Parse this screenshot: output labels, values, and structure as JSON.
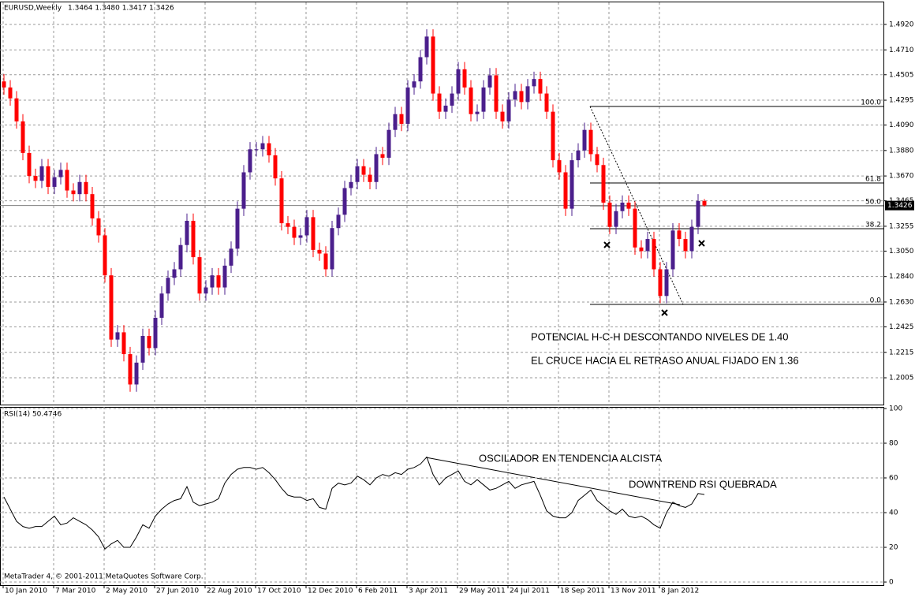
{
  "chart_data": [
    {
      "type": "candlestick",
      "title": "EURUSD,Weekly",
      "ohlc_text": "1.3464 1.3480 1.3417 1.3426",
      "up_color": "#4b1f8c",
      "down_color": "#ff0000",
      "grid": true,
      "open": [
        1.445,
        1.44,
        1.431,
        1.412,
        1.386,
        1.367,
        1.363,
        1.375,
        1.358,
        1.366,
        1.372,
        1.355,
        1.352,
        1.362,
        1.352,
        1.332,
        1.318,
        1.285,
        1.232,
        1.238,
        1.22,
        1.195,
        1.213,
        1.235,
        1.225,
        1.25,
        1.27,
        1.283,
        1.29,
        1.31,
        1.33,
        1.3,
        1.27,
        1.275,
        1.285,
        1.275,
        1.293,
        1.307,
        1.34,
        1.37,
        1.389,
        1.389,
        1.394,
        1.384,
        1.365,
        1.328,
        1.325,
        1.316,
        1.318,
        1.333,
        1.306,
        1.303,
        1.29,
        1.324,
        1.335,
        1.357,
        1.362,
        1.375,
        1.368,
        1.362,
        1.385,
        1.382,
        1.405,
        1.418,
        1.41,
        1.44,
        1.445,
        1.465,
        1.482,
        1.435,
        1.42,
        1.425,
        1.435,
        1.455,
        1.44,
        1.418,
        1.42,
        1.44,
        1.45,
        1.42,
        1.412,
        1.43,
        1.437,
        1.428,
        1.441,
        1.447,
        1.435,
        1.42,
        1.38,
        1.37,
        1.34,
        1.38,
        1.388,
        1.405,
        1.385,
        1.376,
        1.345,
        1.325,
        1.338,
        1.345,
        1.34,
        1.308,
        1.305,
        1.315,
        1.29,
        1.268,
        1.29,
        1.322,
        1.315,
        1.305,
        1.325,
        1.3464
      ],
      "high": [
        1.451,
        1.446,
        1.437,
        1.418,
        1.392,
        1.373,
        1.381,
        1.381,
        1.372,
        1.378,
        1.378,
        1.361,
        1.368,
        1.368,
        1.358,
        1.338,
        1.324,
        1.291,
        1.244,
        1.244,
        1.226,
        1.219,
        1.241,
        1.241,
        1.256,
        1.276,
        1.289,
        1.296,
        1.316,
        1.336,
        1.336,
        1.306,
        1.281,
        1.291,
        1.291,
        1.299,
        1.313,
        1.346,
        1.376,
        1.395,
        1.395,
        1.4,
        1.4,
        1.39,
        1.371,
        1.334,
        1.331,
        1.324,
        1.339,
        1.339,
        1.312,
        1.309,
        1.33,
        1.341,
        1.363,
        1.368,
        1.381,
        1.381,
        1.374,
        1.391,
        1.391,
        1.411,
        1.424,
        1.424,
        1.446,
        1.451,
        1.471,
        1.488,
        1.488,
        1.441,
        1.431,
        1.441,
        1.461,
        1.461,
        1.446,
        1.426,
        1.446,
        1.456,
        1.456,
        1.426,
        1.436,
        1.443,
        1.443,
        1.447,
        1.453,
        1.453,
        1.441,
        1.426,
        1.386,
        1.376,
        1.386,
        1.394,
        1.411,
        1.411,
        1.391,
        1.382,
        1.351,
        1.344,
        1.351,
        1.351,
        1.346,
        1.314,
        1.321,
        1.321,
        1.296,
        1.296,
        1.328,
        1.328,
        1.321,
        1.331,
        1.352,
        1.348
      ],
      "low": [
        1.434,
        1.425,
        1.406,
        1.38,
        1.361,
        1.357,
        1.357,
        1.352,
        1.352,
        1.36,
        1.349,
        1.346,
        1.346,
        1.346,
        1.326,
        1.312,
        1.279,
        1.226,
        1.226,
        1.214,
        1.189,
        1.189,
        1.207,
        1.219,
        1.219,
        1.244,
        1.264,
        1.277,
        1.284,
        1.304,
        1.294,
        1.264,
        1.264,
        1.269,
        1.269,
        1.269,
        1.287,
        1.301,
        1.334,
        1.364,
        1.383,
        1.383,
        1.378,
        1.359,
        1.322,
        1.319,
        1.31,
        1.31,
        1.312,
        1.3,
        1.297,
        1.284,
        1.284,
        1.318,
        1.329,
        1.351,
        1.356,
        1.362,
        1.356,
        1.356,
        1.376,
        1.376,
        1.399,
        1.404,
        1.404,
        1.434,
        1.439,
        1.459,
        1.429,
        1.414,
        1.414,
        1.419,
        1.429,
        1.434,
        1.412,
        1.412,
        1.414,
        1.434,
        1.414,
        1.406,
        1.406,
        1.424,
        1.422,
        1.422,
        1.435,
        1.429,
        1.414,
        1.374,
        1.364,
        1.334,
        1.334,
        1.374,
        1.382,
        1.379,
        1.37,
        1.339,
        1.319,
        1.319,
        1.332,
        1.334,
        1.302,
        1.299,
        1.299,
        1.284,
        1.262,
        1.262,
        1.284,
        1.309,
        1.299,
        1.299,
        1.319,
        1.3417
      ],
      "close": [
        1.44,
        1.431,
        1.412,
        1.386,
        1.367,
        1.363,
        1.375,
        1.358,
        1.366,
        1.372,
        1.355,
        1.352,
        1.362,
        1.352,
        1.332,
        1.318,
        1.285,
        1.232,
        1.238,
        1.22,
        1.195,
        1.213,
        1.235,
        1.225,
        1.25,
        1.27,
        1.283,
        1.29,
        1.31,
        1.33,
        1.3,
        1.27,
        1.275,
        1.285,
        1.275,
        1.293,
        1.307,
        1.34,
        1.37,
        1.389,
        1.389,
        1.394,
        1.384,
        1.365,
        1.328,
        1.325,
        1.316,
        1.318,
        1.333,
        1.306,
        1.303,
        1.29,
        1.324,
        1.335,
        1.357,
        1.362,
        1.375,
        1.368,
        1.362,
        1.385,
        1.382,
        1.405,
        1.418,
        1.41,
        1.44,
        1.445,
        1.465,
        1.482,
        1.435,
        1.42,
        1.425,
        1.435,
        1.455,
        1.44,
        1.418,
        1.42,
        1.44,
        1.45,
        1.42,
        1.412,
        1.43,
        1.437,
        1.428,
        1.441,
        1.447,
        1.435,
        1.42,
        1.38,
        1.37,
        1.34,
        1.38,
        1.388,
        1.405,
        1.385,
        1.376,
        1.345,
        1.325,
        1.338,
        1.345,
        1.34,
        1.308,
        1.305,
        1.315,
        1.29,
        1.268,
        1.29,
        1.322,
        1.315,
        1.305,
        1.325,
        1.3464,
        1.3426
      ],
      "ylim": [
        1.1784,
        1.5102
      ],
      "yticks": [
        {
          "value": 1.492,
          "label": "1.4920"
        },
        {
          "value": 1.471,
          "label": "1.4710"
        },
        {
          "value": 1.4505,
          "label": "1.4505"
        },
        {
          "value": 1.4295,
          "label": "1.4295"
        },
        {
          "value": 1.409,
          "label": "1.4090"
        },
        {
          "value": 1.388,
          "label": "1.3880"
        },
        {
          "value": 1.367,
          "label": "1.3670"
        },
        {
          "value": 1.3465,
          "label": "1.3465"
        },
        {
          "value": 1.3255,
          "label": "1.3255"
        },
        {
          "value": 1.305,
          "label": "1.3050"
        },
        {
          "value": 1.284,
          "label": "1.2840"
        },
        {
          "value": 1.263,
          "label": "1.2630"
        },
        {
          "value": 1.2425,
          "label": "1.2425"
        },
        {
          "value": 1.2215,
          "label": "1.2215"
        },
        {
          "value": 1.2005,
          "label": "1.2005"
        }
      ],
      "current_price": 1.3426,
      "fib_levels": [
        {
          "label": "100.0",
          "price": 1.4243
        },
        {
          "label": "61.8",
          "price": 1.3612
        },
        {
          "label": "50.0",
          "price": 1.3424
        },
        {
          "label": "38.2",
          "price": 1.3235
        },
        {
          "label": "0.0",
          "price": 1.261
        }
      ],
      "annotations": [
        "POTENCIAL H-C-H DESCONTANDO NIVELES DE 1.40",
        "EL CRUCE HACIA EL RETRASO ANUAL FIJADO EN 1.36"
      ]
    },
    {
      "type": "line",
      "title": "RSI(14) 50.4746",
      "color": "#000000",
      "grid": true,
      "categories": [
        "10 Jan 2010",
        null,
        null,
        null,
        null,
        null,
        null,
        null,
        "7 Mar 2010",
        null,
        null,
        null,
        null,
        null,
        null,
        null,
        "2 May 2010",
        null,
        null,
        null,
        null,
        null,
        null,
        null,
        "27 Jun 2010",
        null,
        null,
        null,
        null,
        null,
        null,
        null,
        "22 Aug 2010",
        null,
        null,
        null,
        null,
        null,
        null,
        null,
        "17 Oct 2010",
        null,
        null,
        null,
        null,
        null,
        null,
        null,
        "12 Dec 2010",
        null,
        null,
        null,
        null,
        null,
        null,
        null,
        "6 Feb 2011",
        null,
        null,
        null,
        null,
        null,
        null,
        null,
        "3 Apr 2011",
        null,
        null,
        null,
        null,
        null,
        null,
        null,
        "29 May 2011",
        null,
        null,
        null,
        null,
        null,
        null,
        null,
        "24 Jul 2011",
        null,
        null,
        null,
        null,
        null,
        null,
        null,
        "18 Sep 2011",
        null,
        null,
        null,
        null,
        null,
        null,
        null,
        "13 Nov 2011",
        null,
        null,
        null,
        null,
        null,
        null,
        null,
        "8 Jan 2012",
        null,
        null,
        null,
        null,
        null,
        null,
        null
      ],
      "values": [
        49,
        42,
        35,
        32,
        31,
        32,
        32,
        35,
        38,
        33,
        34,
        37,
        35,
        33,
        30,
        26,
        19,
        22,
        24,
        20,
        20,
        26,
        33,
        31,
        38,
        42,
        45,
        47,
        48,
        55,
        46,
        44,
        45,
        46,
        48,
        57,
        62,
        65,
        66,
        66,
        65,
        66,
        63,
        59,
        54,
        50,
        49,
        49,
        47,
        48,
        43,
        42,
        54,
        57,
        56,
        57,
        61,
        59,
        56,
        60,
        62,
        61,
        63,
        62,
        65,
        66,
        68,
        72,
        62,
        56,
        60,
        62,
        64,
        58,
        56,
        59,
        56,
        53,
        54,
        56,
        58,
        54,
        56,
        57,
        58,
        50,
        41,
        38,
        37,
        37,
        40,
        47,
        50,
        53,
        47,
        44,
        41,
        39,
        42,
        38,
        37,
        38,
        36,
        33,
        31,
        40,
        46,
        44,
        43,
        45,
        51,
        50.4746
      ],
      "ylim": [
        -1.8,
        100.9
      ],
      "yticks": [
        0,
        20,
        40,
        60,
        80,
        100
      ],
      "annotations": [
        "OSCILADOR EN TENDENCIA ALCISTA",
        "DOWNTREND RSI QUEBRADA"
      ]
    }
  ],
  "footer": "MetaTrader 4, © 2001-2011 MetaQuotes Software Corp."
}
